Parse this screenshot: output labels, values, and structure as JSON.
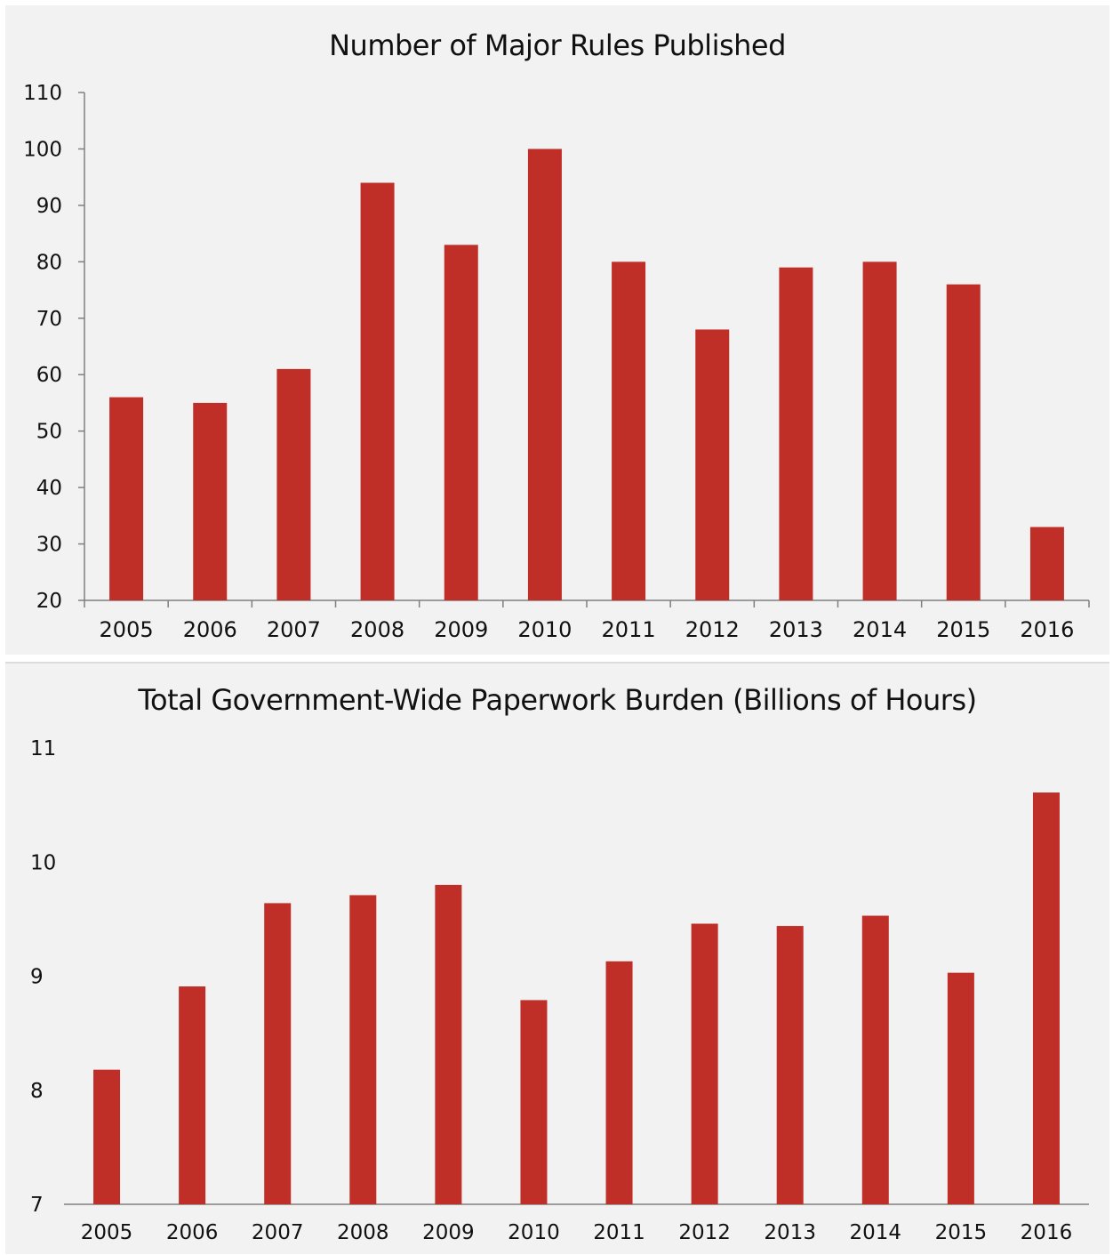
{
  "colors": {
    "bar": "#bf2f28",
    "axis": "#7f7f7f",
    "background": "#f2f2f2"
  },
  "chart_data": [
    {
      "type": "bar",
      "title": "Number of Major Rules Published",
      "xlabel": "",
      "ylabel": "",
      "categories": [
        "2005",
        "2006",
        "2007",
        "2008",
        "2009",
        "2010",
        "2011",
        "2012",
        "2013",
        "2014",
        "2015",
        "2016"
      ],
      "values": [
        56,
        55,
        61,
        94,
        83,
        100,
        80,
        68,
        79,
        80,
        76,
        33
      ],
      "ylim": [
        20,
        110
      ],
      "yticks": [
        20,
        30,
        40,
        50,
        60,
        70,
        80,
        90,
        100,
        110
      ],
      "grid": false,
      "legend": "none"
    },
    {
      "type": "bar",
      "title": "Total Government-Wide Paperwork Burden (Billions of Hours)",
      "xlabel": "",
      "ylabel": "",
      "categories": [
        "2005",
        "2006",
        "2007",
        "2008",
        "2009",
        "2010",
        "2011",
        "2012",
        "2013",
        "2014",
        "2015",
        "2016"
      ],
      "values": [
        8.18,
        8.91,
        9.64,
        9.71,
        9.8,
        8.79,
        9.13,
        9.46,
        9.44,
        9.53,
        9.03,
        10.61
      ],
      "ylim": [
        7,
        11
      ],
      "yticks": [
        7,
        8,
        9,
        10,
        11
      ],
      "grid": false,
      "legend": "none"
    }
  ]
}
